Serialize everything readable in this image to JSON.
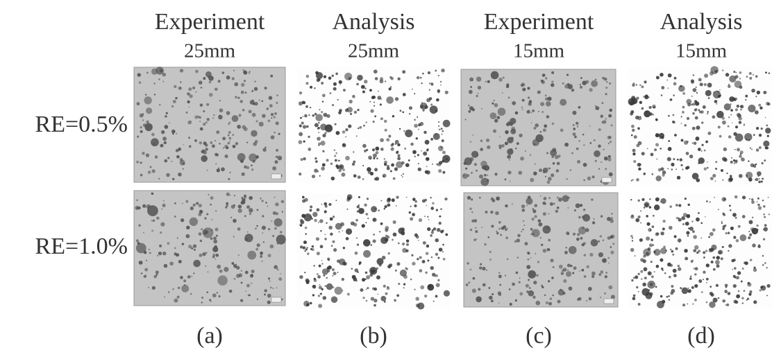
{
  "columns": [
    {
      "title": "Experiment",
      "subtitle": "25mm",
      "label": "(a)"
    },
    {
      "title": "Analysis",
      "subtitle": "25mm",
      "label": "(b)"
    },
    {
      "title": "Experiment",
      "subtitle": "15mm",
      "label": "(c)"
    },
    {
      "title": "Analysis",
      "subtitle": "15mm",
      "label": "(d)"
    }
  ],
  "rows": [
    {
      "label": "RE=0.5%"
    },
    {
      "label": "RE=1.0%"
    }
  ]
}
